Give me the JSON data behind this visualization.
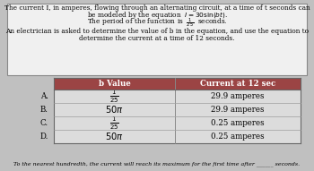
{
  "title_lines": [
    "The current I, in amperes, flowing through an alternating circuit, at a time of t seconds can",
    "be modeled by the equation  $I = 30\\sin(bt)$.",
    "The period of the function is  $\\frac{1}{25}$  seconds.",
    "An electrician is asked to determine the value of b in the equation, and use the equation to",
    "determine the current at a time of 12 seconds."
  ],
  "header": [
    "b Value",
    "Current at 12 sec"
  ],
  "row_labels": [
    "A.",
    "B.",
    "C.",
    "D."
  ],
  "b_values": [
    "$\\frac{1}{25}$",
    "$50\\pi$",
    "$\\frac{1}{25}$",
    "$50\\pi$"
  ],
  "currents": [
    "29.9 amperes",
    "29.9 amperes",
    "0.25 amperes",
    "0.25 amperes"
  ],
  "footer": "To the nearest hundredth, the current will reach its maximum for the first time after ______ seconds.",
  "header_bg": "#9B4444",
  "header_fg": "#FFFFFF",
  "row_bg": "#DCDCDC",
  "border_color": "#888888",
  "box_bg": "#F0F0F0",
  "page_bg": "#C0C0C0",
  "title_fontsize": 5.3,
  "table_fontsize": 6.2,
  "footer_fontsize": 4.5
}
